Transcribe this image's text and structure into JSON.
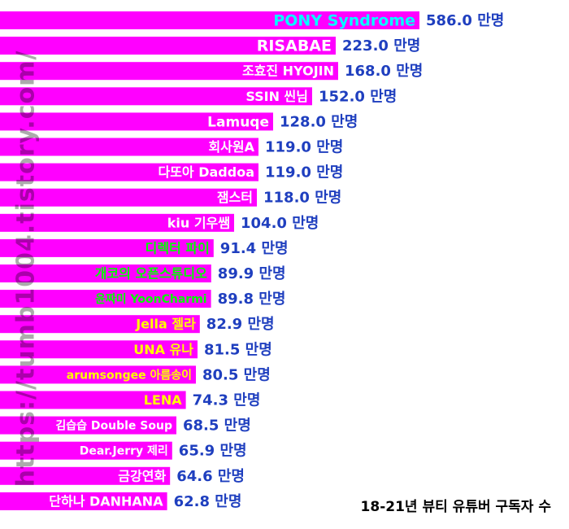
{
  "chart_data": {
    "type": "bar",
    "orientation": "horizontal",
    "caption": "18-21년 뷰티 유튜버 구독자 수",
    "unit": "만명",
    "categories": [
      "PONY Syndrome",
      "RISABAE",
      "조효진 HYOJIN",
      "SSIN 씬님",
      "Lamuqe",
      "회사원A",
      "다또아 Daddoa",
      "잼스터",
      "kiu 기우쌤",
      "디렉터 파이",
      "개코의 오픈스튜디오",
      "윤짜미 YoonCharmi",
      "Jella 젤라",
      "UNA 유나",
      "arumsongee 아름송이",
      "LENA",
      "김습습 Double Soup",
      "Dear.Jerry 제리",
      "금강연화",
      "단하나 DANHANA"
    ],
    "values": [
      586.0,
      223.0,
      168.0,
      152.0,
      128.0,
      119.0,
      119.0,
      118.0,
      104.0,
      91.4,
      89.9,
      89.8,
      82.9,
      81.5,
      80.5,
      74.3,
      68.5,
      65.9,
      64.6,
      62.8
    ],
    "value_labels": [
      "586.0 만명",
      "223.0 만명",
      "168.0 만명",
      "152.0 만명",
      "128.0 만명",
      "119.0 만명",
      "119.0 만명",
      "118.0 만명",
      "104.0 만명",
      "91.4 만명",
      "89.9 만명",
      "89.8 만명",
      "82.9 만명",
      "81.5 만명",
      "80.5 만명",
      "74.3 만명",
      "68.5 만명",
      "65.9 만명",
      "64.6 만명",
      "62.8 만명"
    ],
    "label_colors": [
      "#00ffff",
      "#ffffff",
      "#ffffff",
      "#ffffff",
      "#ffffff",
      "#ffffff",
      "#ffffff",
      "#ffffff",
      "#ffffff",
      "#00ff00",
      "#00ff00",
      "#00ff00",
      "#ffff00",
      "#ffff00",
      "#ffff00",
      "#ffff00",
      "#ffffff",
      "#ffffff",
      "#ffffff",
      "#ffffff"
    ],
    "bar_color": "#ff00ff",
    "value_color": "#1f3fbf",
    "grid": false,
    "legend": "none"
  },
  "watermark": "https://tumb1004.tistory.com/"
}
